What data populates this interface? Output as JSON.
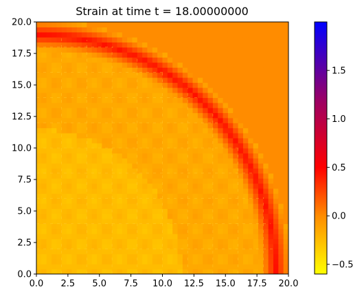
{
  "chart_data": {
    "type": "heatmap",
    "title": "Strain at time t =    18.00000000",
    "xlabel": "",
    "ylabel": "",
    "xlim": [
      0,
      20
    ],
    "ylim": [
      0,
      20
    ],
    "x_ticks": [
      0,
      2.5,
      5,
      7.5,
      10,
      12.5,
      15,
      17.5,
      20
    ],
    "x_tick_labels": [
      "0.0",
      "2.5",
      "5.0",
      "7.5",
      "10.0",
      "12.5",
      "15.0",
      "17.5",
      "20.0"
    ],
    "y_ticks": [
      0,
      2.5,
      5,
      7.5,
      10,
      12.5,
      15,
      17.5,
      20
    ],
    "y_tick_labels": [
      "0.0",
      "2.5",
      "5.0",
      "7.5",
      "10.0",
      "12.5",
      "15.0",
      "17.5",
      "20.0"
    ],
    "field": {
      "description_values": "strain field over a quarter-circular domain centered at the origin",
      "background_value": 0.0,
      "front_radius": 19.0,
      "front_width": 1.2,
      "front_peak_value": 0.45,
      "interior_value": -0.15,
      "inner_region_radius": 11.5,
      "inner_region_value": -0.25,
      "mesh_spacing": 2.0
    },
    "colorbar": {
      "min": -0.6,
      "max": 2.0,
      "ticks": [
        -0.5,
        0.0,
        0.5,
        1.0,
        1.5
      ],
      "tick_labels": [
        "−0.5",
        "0.0",
        "0.5",
        "1.0",
        "1.5"
      ],
      "colors": [
        "#ffff00",
        "#ff8c00",
        "#ff0000",
        "#9a0066",
        "#0000ff"
      ],
      "color_stops": [
        -0.6,
        0.0,
        0.5,
        1.2,
        2.0
      ]
    }
  }
}
